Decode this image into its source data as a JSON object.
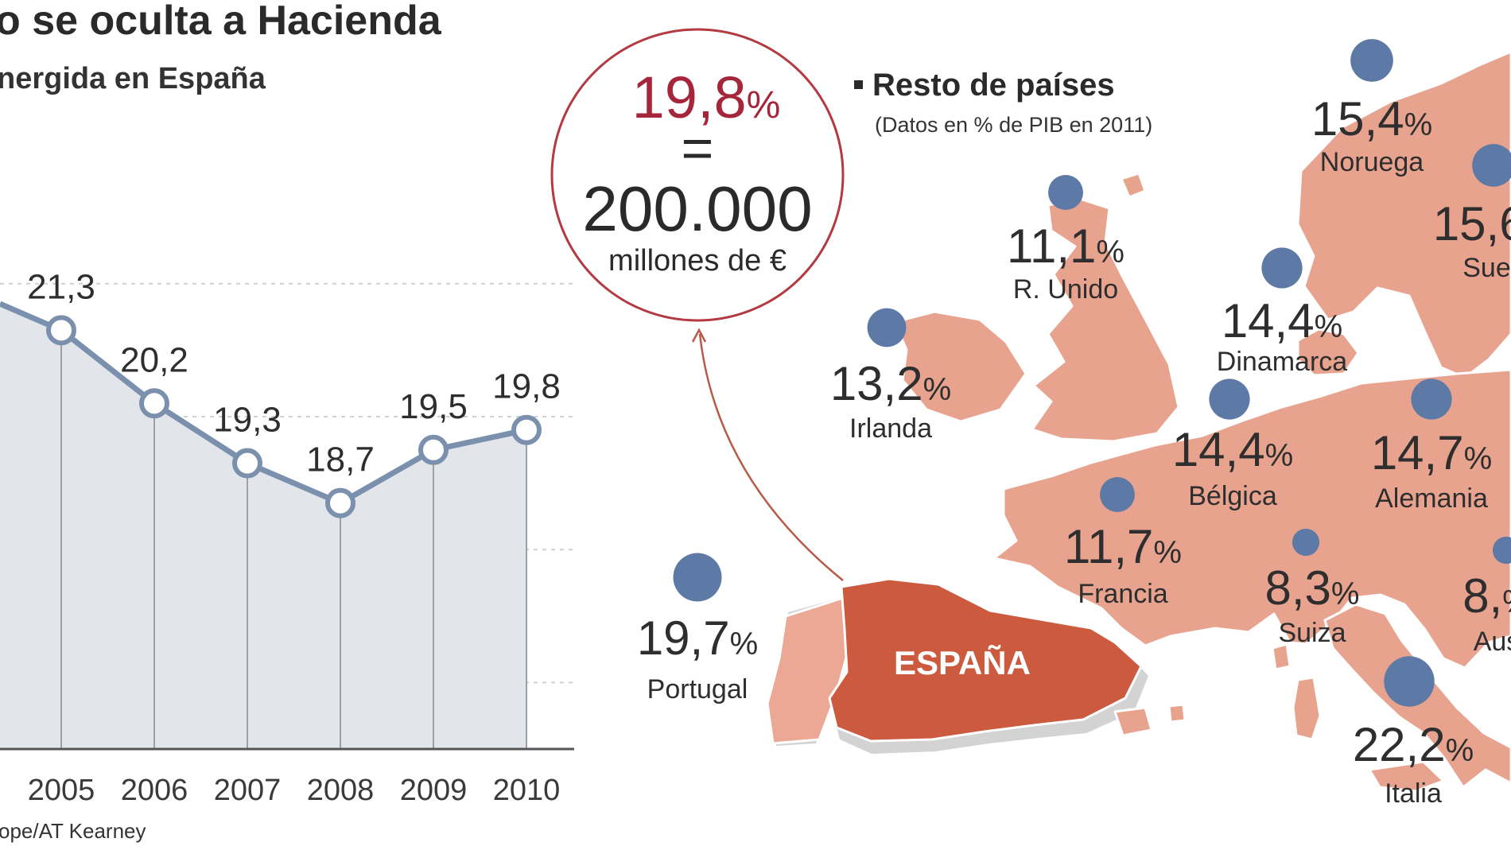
{
  "title": "o se oculta a Hacienda",
  "subtitle": "nergida en España",
  "source": "ope/AT Kearney",
  "colors": {
    "line": "#7a90ad",
    "area": "#e2e6eb",
    "highlight": "#a5263b",
    "map_land": "#e8a38f",
    "spain": "#cc5a3f",
    "dot": "#5d7aa6"
  },
  "chart_data": [
    {
      "type": "line",
      "categories": [
        "2005",
        "2006",
        "2007",
        "2008",
        "2009",
        "2010"
      ],
      "values": [
        21.3,
        20.2,
        19.3,
        18.7,
        19.5,
        19.8
      ],
      "value_labels": [
        "21,3",
        "20,2",
        "19,3",
        "18,7",
        "19,5",
        "19,8"
      ],
      "highlight_index": 5,
      "ylim": [
        15,
        23
      ]
    }
  ],
  "callout": {
    "percent": "19,8",
    "percent_sign": "%",
    "equals": "=",
    "amount": "200.000",
    "unit": "millones de €"
  },
  "map": {
    "legend_title": "Resto de países",
    "legend_note": "(Datos en % de PIB en 2011)",
    "spain_label": "ESPAÑA",
    "countries": [
      {
        "name": "Noruega",
        "value": "15,4",
        "dot": 22
      },
      {
        "name": "Suec",
        "value": "15,6",
        "dot": 22
      },
      {
        "name": "R. Unido",
        "value": "11,1",
        "dot": 18
      },
      {
        "name": "Dinamarca",
        "value": "14,4",
        "dot": 21
      },
      {
        "name": "Irlanda",
        "value": "13,2",
        "dot": 20
      },
      {
        "name": "Bélgica",
        "value": "14,4",
        "dot": 21
      },
      {
        "name": "Alemania",
        "value": "14,7",
        "dot": 21
      },
      {
        "name": "Francia",
        "value": "11,7",
        "dot": 18
      },
      {
        "name": "Suiza",
        "value": "8,3",
        "dot": 14
      },
      {
        "name": "Aus",
        "value": "8,",
        "dot": 14
      },
      {
        "name": "Portugal",
        "value": "19,7",
        "dot": 25
      },
      {
        "name": "Italia",
        "value": "22,2",
        "dot": 26
      }
    ]
  }
}
